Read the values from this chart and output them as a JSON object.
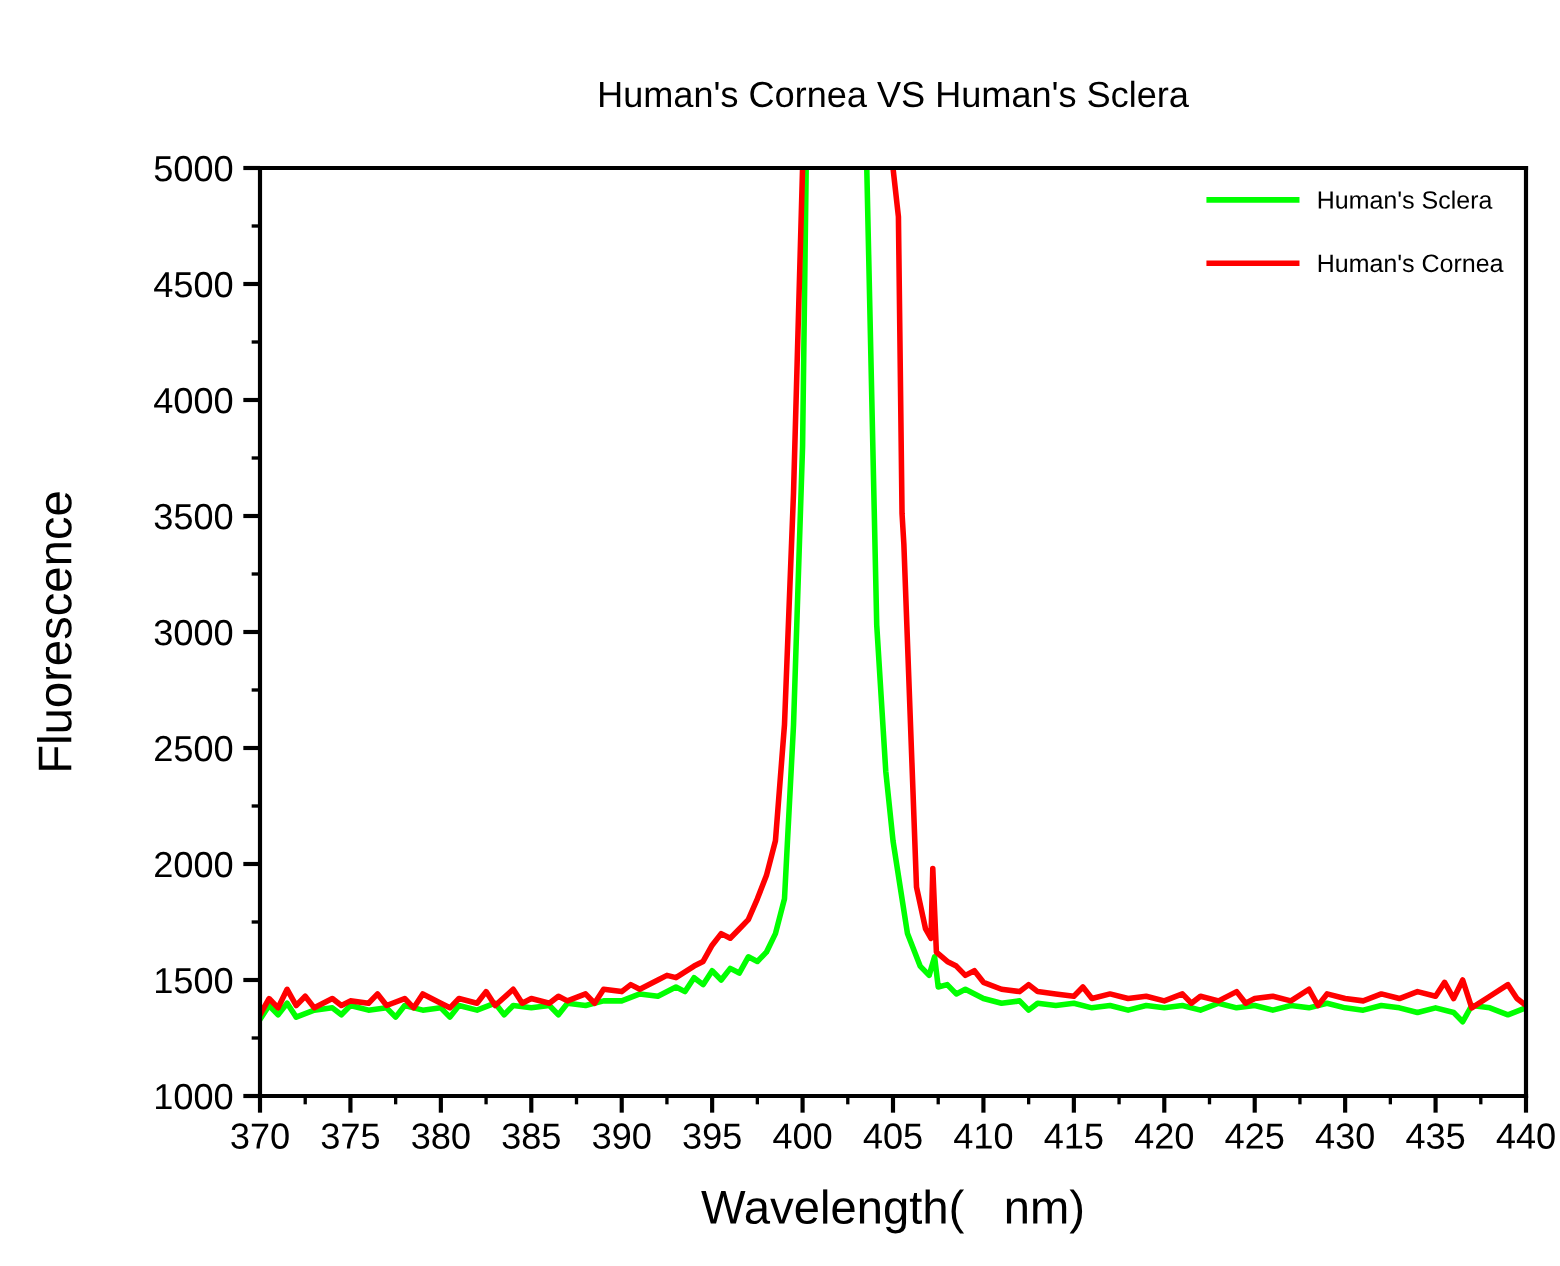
{
  "chart_data": {
    "type": "line",
    "title": "Human's Cornea VS Human's Sclera",
    "xlabel": "Wavelength(   nm)",
    "ylabel": "Fluorescence",
    "xlim": [
      370,
      440
    ],
    "xticks": [
      370,
      375,
      380,
      385,
      390,
      395,
      400,
      405,
      410,
      415,
      420,
      425,
      430,
      435,
      440
    ],
    "ylim": [
      1000,
      5000
    ],
    "yticks": [
      1000,
      1500,
      2000,
      2500,
      3000,
      3500,
      4000,
      4500,
      5000
    ],
    "grid": false,
    "legend": "top right",
    "marker": "none",
    "line_style": "solid",
    "series": [
      {
        "name": "Human's Sclera",
        "color": "#00ff00",
        "x": [
          370,
          370.5,
          371,
          371.5,
          372,
          373,
          374,
          374.5,
          375,
          376,
          377,
          377.5,
          378,
          379,
          380,
          380.5,
          381,
          382,
          383,
          383.5,
          384,
          385,
          386,
          386.5,
          387,
          388,
          389,
          390,
          391,
          392,
          393,
          393.5,
          394,
          394.5,
          395,
          395.5,
          396,
          396.5,
          397,
          397.5,
          398,
          398.5,
          399,
          399.5,
          400,
          400.2,
          402,
          403.55,
          404.1,
          404.6,
          405,
          405.4,
          405.8,
          406.5,
          407,
          407.3,
          407.5,
          408,
          408.5,
          409,
          410,
          411,
          412,
          412.5,
          413,
          414,
          415,
          416,
          417,
          418,
          419,
          420,
          421,
          422,
          423,
          424,
          425,
          426,
          427,
          428,
          429,
          430,
          431,
          432,
          433,
          434,
          435,
          436,
          436.5,
          437,
          438,
          439,
          440
        ],
        "values": [
          1330,
          1390,
          1350,
          1400,
          1340,
          1370,
          1380,
          1350,
          1390,
          1370,
          1380,
          1340,
          1390,
          1370,
          1380,
          1340,
          1390,
          1370,
          1400,
          1350,
          1390,
          1380,
          1390,
          1350,
          1400,
          1390,
          1410,
          1410,
          1440,
          1430,
          1470,
          1450,
          1510,
          1480,
          1540,
          1500,
          1550,
          1530,
          1600,
          1580,
          1620,
          1700,
          1850,
          2600,
          3800,
          5000,
          null,
          5000,
          3030,
          2400,
          2100,
          1900,
          1700,
          1560,
          1520,
          1600,
          1470,
          1480,
          1440,
          1460,
          1420,
          1400,
          1410,
          1370,
          1400,
          1390,
          1400,
          1380,
          1390,
          1370,
          1390,
          1380,
          1390,
          1370,
          1400,
          1380,
          1390,
          1370,
          1390,
          1380,
          1400,
          1380,
          1370,
          1390,
          1380,
          1360,
          1380,
          1360,
          1320,
          1390,
          1380,
          1350,
          1380
        ]
      },
      {
        "name": "Human's Cornea",
        "color": "#ff0000",
        "x": [
          370,
          370.5,
          371,
          371.5,
          372,
          372.5,
          373,
          374,
          374.5,
          375,
          376,
          376.5,
          377,
          378,
          378.5,
          379,
          380,
          380.5,
          381,
          382,
          382.5,
          383,
          384,
          384.5,
          385,
          386,
          386.5,
          387,
          388,
          388.5,
          389,
          390,
          390.5,
          391,
          392,
          392.5,
          393,
          394,
          394.5,
          395,
          395.5,
          396,
          396.5,
          397,
          397.5,
          398,
          398.5,
          399,
          399.5,
          400,
          402,
          405,
          405.3,
          405.5,
          405.6,
          406.3,
          406.8,
          407.1,
          407.2,
          407.4,
          408,
          408.5,
          409,
          409.5,
          410,
          411,
          412,
          412.5,
          413,
          414,
          415,
          415.5,
          416,
          417,
          418,
          419,
          420,
          421,
          421.5,
          422,
          423,
          424,
          424.5,
          425,
          426,
          427,
          428,
          428.5,
          429,
          430,
          431,
          432,
          433,
          434,
          435,
          435.5,
          436,
          436.5,
          437,
          438,
          439,
          439.5,
          440
        ],
        "values": [
          1350,
          1420,
          1380,
          1460,
          1390,
          1430,
          1380,
          1420,
          1390,
          1410,
          1400,
          1440,
          1390,
          1420,
          1380,
          1440,
          1400,
          1380,
          1420,
          1400,
          1450,
          1390,
          1460,
          1400,
          1420,
          1400,
          1430,
          1410,
          1440,
          1400,
          1460,
          1450,
          1480,
          1460,
          1500,
          1520,
          1510,
          1560,
          1580,
          1650,
          1700,
          1680,
          1720,
          1760,
          1850,
          1950,
          2100,
          2600,
          3600,
          5000,
          null,
          5000,
          4790,
          3510,
          3380,
          1900,
          1720,
          1680,
          1980,
          1620,
          1580,
          1560,
          1520,
          1540,
          1490,
          1460,
          1450,
          1480,
          1450,
          1440,
          1430,
          1470,
          1420,
          1440,
          1420,
          1430,
          1410,
          1440,
          1400,
          1430,
          1410,
          1450,
          1400,
          1420,
          1430,
          1410,
          1460,
          1390,
          1440,
          1420,
          1410,
          1440,
          1420,
          1450,
          1430,
          1490,
          1420,
          1500,
          1380,
          1430,
          1480,
          1420,
          1390
        ]
      }
    ]
  }
}
